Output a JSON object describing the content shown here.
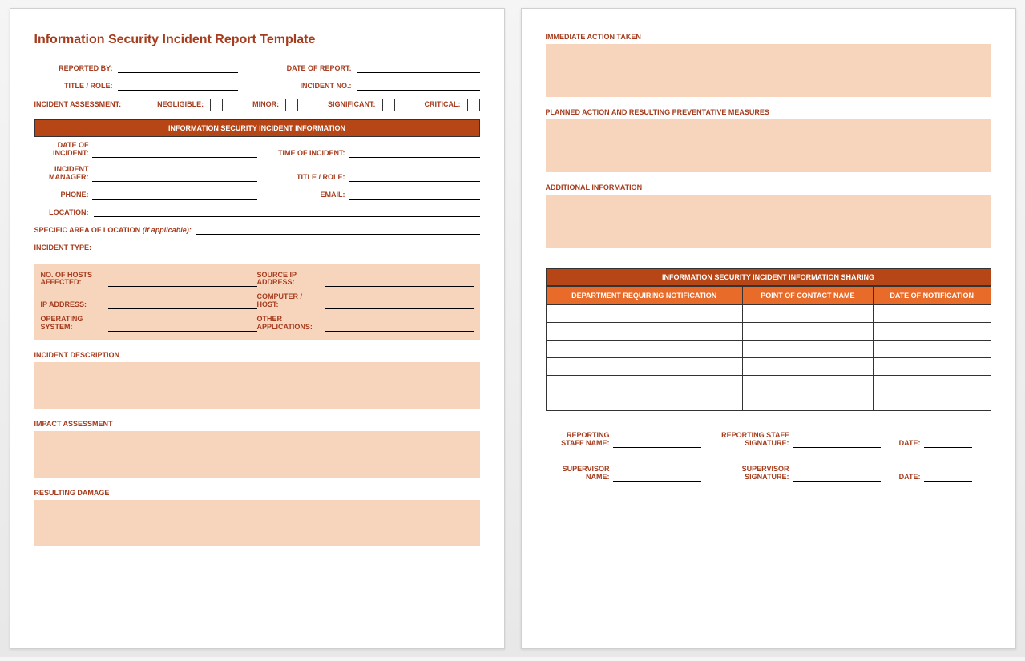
{
  "colors": {
    "brand_text": "#a63c1e",
    "section_bar_bg": "#b74617",
    "table_header_bg": "#e86b2a",
    "peach_fill": "#f7d5bd",
    "page_bg": "#ffffff",
    "border": "#333333"
  },
  "title": "Information Security Incident Report Template",
  "header_fields": {
    "reported_by": "REPORTED BY:",
    "date_of_report": "DATE OF REPORT:",
    "title_role": "TITLE / ROLE:",
    "incident_no": "INCIDENT NO.:"
  },
  "assessment": {
    "label": "INCIDENT ASSESSMENT:",
    "options": [
      "NEGLIGIBLE:",
      "MINOR:",
      "SIGNIFICANT:",
      "CRITICAL:"
    ]
  },
  "section1": {
    "bar": "INFORMATION SECURITY INCIDENT INFORMATION",
    "date_of_incident": "DATE OF\nINCIDENT:",
    "time_of_incident": "TIME OF INCIDENT:",
    "incident_manager": "INCIDENT\nMANAGER:",
    "title_role": "TITLE / ROLE:",
    "phone": "PHONE:",
    "email": "EMAIL:",
    "location": "LOCATION:",
    "specific_area": "SPECIFIC AREA OF LOCATION",
    "specific_area_italic": "(if applicable):",
    "incident_type": "INCIDENT TYPE:"
  },
  "tech_box": {
    "hosts_affected": "NO. OF HOSTS\nAFFECTED:",
    "source_ip": "SOURCE IP\nADDRESS:",
    "ip_address": "IP ADDRESS:",
    "computer_host": "COMPUTER /\nHOST:",
    "operating_system": "OPERATING\nSYSTEM:",
    "other_apps": "OTHER\nAPPLICATIONS:"
  },
  "sections": {
    "incident_description": "INCIDENT DESCRIPTION",
    "impact_assessment": "IMPACT ASSESSMENT",
    "resulting_damage": "RESULTING DAMAGE",
    "immediate_action": "IMMEDIATE ACTION TAKEN",
    "planned_action": "PLANNED ACTION AND RESULTING PREVENTATIVE MEASURES",
    "additional_info": "ADDITIONAL INFORMATION"
  },
  "sharing_table": {
    "bar": "INFORMATION SECURITY INCIDENT INFORMATION SHARING",
    "columns": [
      "DEPARTMENT REQUIRING NOTIFICATION",
      "POINT OF CONTACT NAME",
      "DATE OF NOTIFICATION"
    ],
    "row_count": 6
  },
  "signatures": {
    "reporting_staff_name": "REPORTING\nSTAFF NAME:",
    "reporting_staff_sig": "REPORTING STAFF\nSIGNATURE:",
    "supervisor_name": "SUPERVISOR\nNAME:",
    "supervisor_sig": "SUPERVISOR\nSIGNATURE:",
    "date": "DATE:"
  }
}
